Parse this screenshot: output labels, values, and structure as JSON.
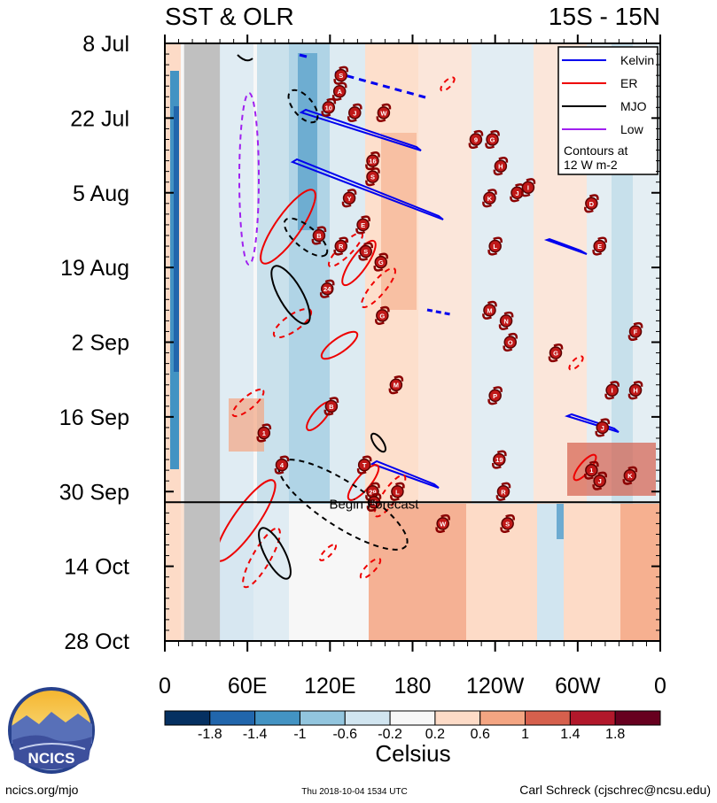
{
  "header": {
    "title_left": "SST & OLR",
    "title_right": "15S - 15N"
  },
  "chart_data": {
    "type": "heatmap",
    "title": "SST & OLR",
    "region": "15S - 15N",
    "y_axis": {
      "ticks": [
        "8 Jul",
        "22 Jul",
        "5 Aug",
        "19 Aug",
        "2 Sep",
        "16 Sep",
        "30 Sep",
        "14 Oct",
        "28 Oct"
      ],
      "day_of_range": [
        0,
        14,
        28,
        42,
        56,
        70,
        84,
        98,
        112
      ],
      "range_days": [
        0,
        112
      ]
    },
    "x_axis": {
      "ticks": [
        "0",
        "60E",
        "120E",
        "180",
        "120W",
        "60W",
        "0"
      ],
      "longitude_deg": [
        0,
        60,
        120,
        180,
        240,
        300,
        360
      ],
      "range_deg": [
        0,
        360
      ]
    },
    "colorbar": {
      "label": "Celsius",
      "tick_labels": [
        "-1.8",
        "-1.4",
        "-1",
        "-0.6",
        "-0.2",
        "0.2",
        "0.6",
        "1",
        "1.4",
        "1.8"
      ],
      "colors": [
        "#053061",
        "#2166ac",
        "#4393c3",
        "#92c5de",
        "#d1e5f0",
        "#f7f7f7",
        "#fddbc7",
        "#f4a582",
        "#d6604d",
        "#b2182b",
        "#67001f"
      ]
    },
    "forecast_line": {
      "label": "Begin Forecast",
      "day": 86
    },
    "legend": {
      "items": [
        {
          "label": "Kelvin",
          "color": "#0000ee"
        },
        {
          "label": "ER",
          "color": "#ee0000"
        },
        {
          "label": "MJO",
          "color": "#000000"
        },
        {
          "label": "Low",
          "color": "#a020f0"
        }
      ],
      "note_line1": "Contours at",
      "note_line2": "12 W m-2"
    },
    "land_mask": {
      "lon_start": 14,
      "lon_end": 40,
      "color": "#c0c0c0"
    },
    "storm_markers": [
      {
        "label": "S",
        "lon": 128,
        "day": 6
      },
      {
        "label": "A",
        "lon": 127,
        "day": 9
      },
      {
        "label": "10",
        "lon": 119,
        "day": 12
      },
      {
        "label": "J",
        "lon": 138,
        "day": 13
      },
      {
        "label": "W",
        "lon": 159,
        "day": 13
      },
      {
        "label": "9",
        "lon": 226,
        "day": 18
      },
      {
        "label": "G",
        "lon": 238,
        "day": 18
      },
      {
        "label": "16",
        "lon": 151,
        "day": 22
      },
      {
        "label": "S",
        "lon": 151,
        "day": 25
      },
      {
        "label": "H",
        "lon": 244,
        "day": 23
      },
      {
        "label": "Y",
        "lon": 134,
        "day": 29
      },
      {
        "label": "K",
        "lon": 236,
        "day": 29
      },
      {
        "label": "J",
        "lon": 256,
        "day": 28
      },
      {
        "label": "I",
        "lon": 264,
        "day": 27
      },
      {
        "label": "D",
        "lon": 310,
        "day": 30
      },
      {
        "label": "B",
        "lon": 112,
        "day": 36
      },
      {
        "label": "E",
        "lon": 144,
        "day": 34
      },
      {
        "label": "R",
        "lon": 128,
        "day": 38
      },
      {
        "label": "S",
        "lon": 146,
        "day": 39
      },
      {
        "label": "L",
        "lon": 240,
        "day": 38
      },
      {
        "label": "E",
        "lon": 316,
        "day": 38
      },
      {
        "label": "G",
        "lon": 157,
        "day": 41
      },
      {
        "label": "24",
        "lon": 118,
        "day": 46
      },
      {
        "label": "M",
        "lon": 236,
        "day": 50
      },
      {
        "label": "N",
        "lon": 248,
        "day": 52
      },
      {
        "label": "G",
        "lon": 158,
        "day": 51
      },
      {
        "label": "O",
        "lon": 251,
        "day": 56
      },
      {
        "label": "G",
        "lon": 284,
        "day": 58
      },
      {
        "label": "F",
        "lon": 342,
        "day": 54
      },
      {
        "label": "M",
        "lon": 168,
        "day": 64
      },
      {
        "label": "P",
        "lon": 240,
        "day": 66
      },
      {
        "label": "I",
        "lon": 325,
        "day": 65
      },
      {
        "label": "H",
        "lon": 342,
        "day": 65
      },
      {
        "label": "B",
        "lon": 121,
        "day": 68
      },
      {
        "label": "J",
        "lon": 318,
        "day": 72
      },
      {
        "label": "1",
        "lon": 72,
        "day": 73
      },
      {
        "label": "19",
        "lon": 243,
        "day": 78
      },
      {
        "label": "4",
        "lon": 85,
        "day": 79
      },
      {
        "label": "T",
        "lon": 145,
        "day": 79
      },
      {
        "label": "R",
        "lon": 246,
        "day": 84
      },
      {
        "label": "1",
        "lon": 310,
        "day": 80
      },
      {
        "label": "J",
        "lon": 316,
        "day": 82
      },
      {
        "label": "K",
        "lon": 338,
        "day": 81
      },
      {
        "label": "L",
        "lon": 169,
        "day": 84
      },
      {
        "label": "29",
        "lon": 151,
        "day": 84
      },
      {
        "label": "K",
        "lon": 152,
        "day": 86
      },
      {
        "label": "S",
        "lon": 249,
        "day": 90
      },
      {
        "label": "W",
        "lon": 202,
        "day": 90
      }
    ]
  },
  "footer": {
    "logo_text": "NCICS",
    "website": "ncics.org/mjo",
    "timestamp": "Thu 2018-10-04 1534 UTC",
    "credit": "Carl Schreck (cjschrec@ncsu.edu)"
  }
}
